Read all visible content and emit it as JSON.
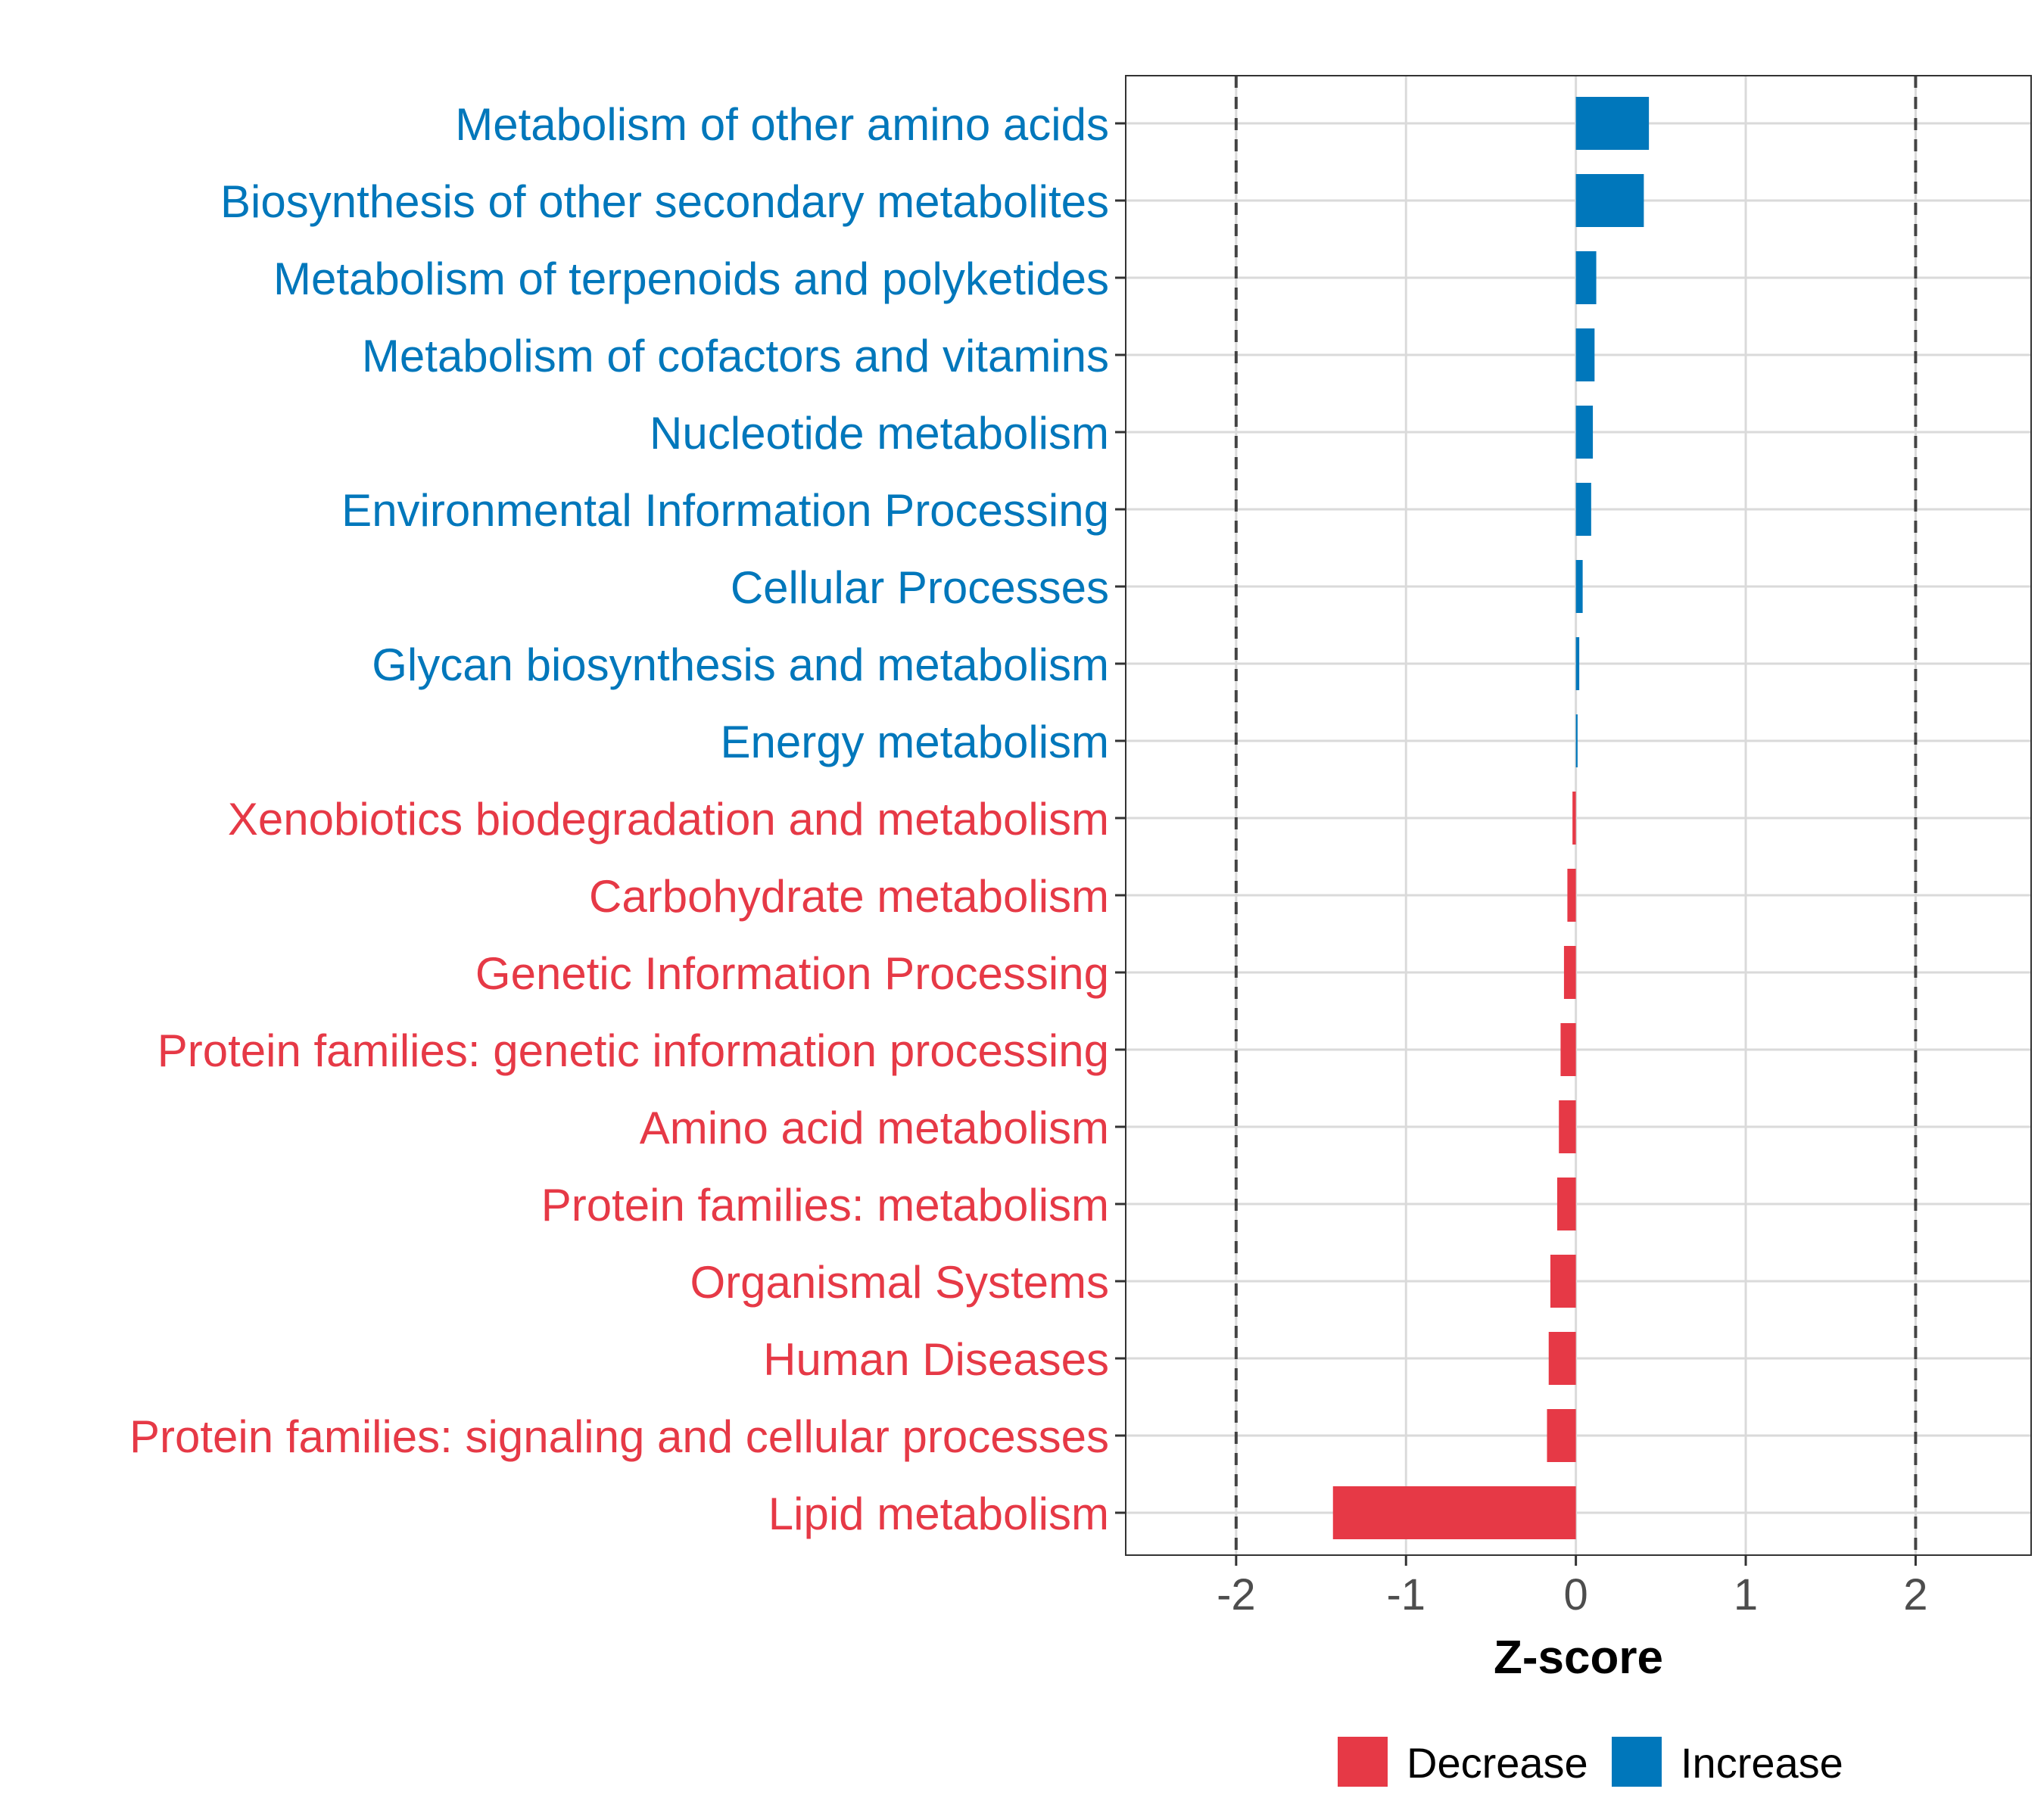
{
  "chart_data": {
    "type": "bar",
    "orientation": "horizontal",
    "title": "",
    "xlabel": "Z-score",
    "ylabel": "",
    "xlim": [
      -2.65,
      2.68
    ],
    "xticks": [
      -2,
      -1,
      0,
      1,
      2
    ],
    "xtick_labels": [
      "-2",
      "-1",
      "0",
      "1",
      "2"
    ],
    "reference_lines": [
      -2,
      2
    ],
    "grid": true,
    "legend_position": "bottom",
    "colors": {
      "Decrease": "#E63946",
      "Increase": "#0077BB"
    },
    "legend": [
      {
        "label": "Decrease",
        "color": "#E63946"
      },
      {
        "label": "Increase",
        "color": "#0077BB"
      }
    ],
    "categories": [
      "Metabolism of other amino acids",
      "Biosynthesis of other secondary metabolites",
      "Metabolism of terpenoids and polyketides",
      "Metabolism of cofactors and vitamins",
      "Nucleotide metabolism",
      "Environmental Information Processing",
      "Cellular Processes",
      "Glycan biosynthesis and metabolism",
      "Energy metabolism",
      "Xenobiotics biodegradation and metabolism",
      "Carbohydrate metabolism",
      "Genetic Information Processing",
      "Protein families: genetic information processing",
      "Amino acid metabolism",
      "Protein families: metabolism",
      "Organismal Systems",
      "Human Diseases",
      "Protein families: signaling and cellular processes",
      "Lipid metabolism"
    ],
    "values": [
      0.43,
      0.4,
      0.12,
      0.11,
      0.1,
      0.09,
      0.04,
      0.02,
      0.01,
      -0.02,
      -0.05,
      -0.07,
      -0.09,
      -0.1,
      -0.11,
      -0.15,
      -0.16,
      -0.17,
      -1.43
    ],
    "groups": [
      "Increase",
      "Increase",
      "Increase",
      "Increase",
      "Increase",
      "Increase",
      "Increase",
      "Increase",
      "Increase",
      "Decrease",
      "Decrease",
      "Decrease",
      "Decrease",
      "Decrease",
      "Decrease",
      "Decrease",
      "Decrease",
      "Decrease",
      "Decrease"
    ]
  }
}
